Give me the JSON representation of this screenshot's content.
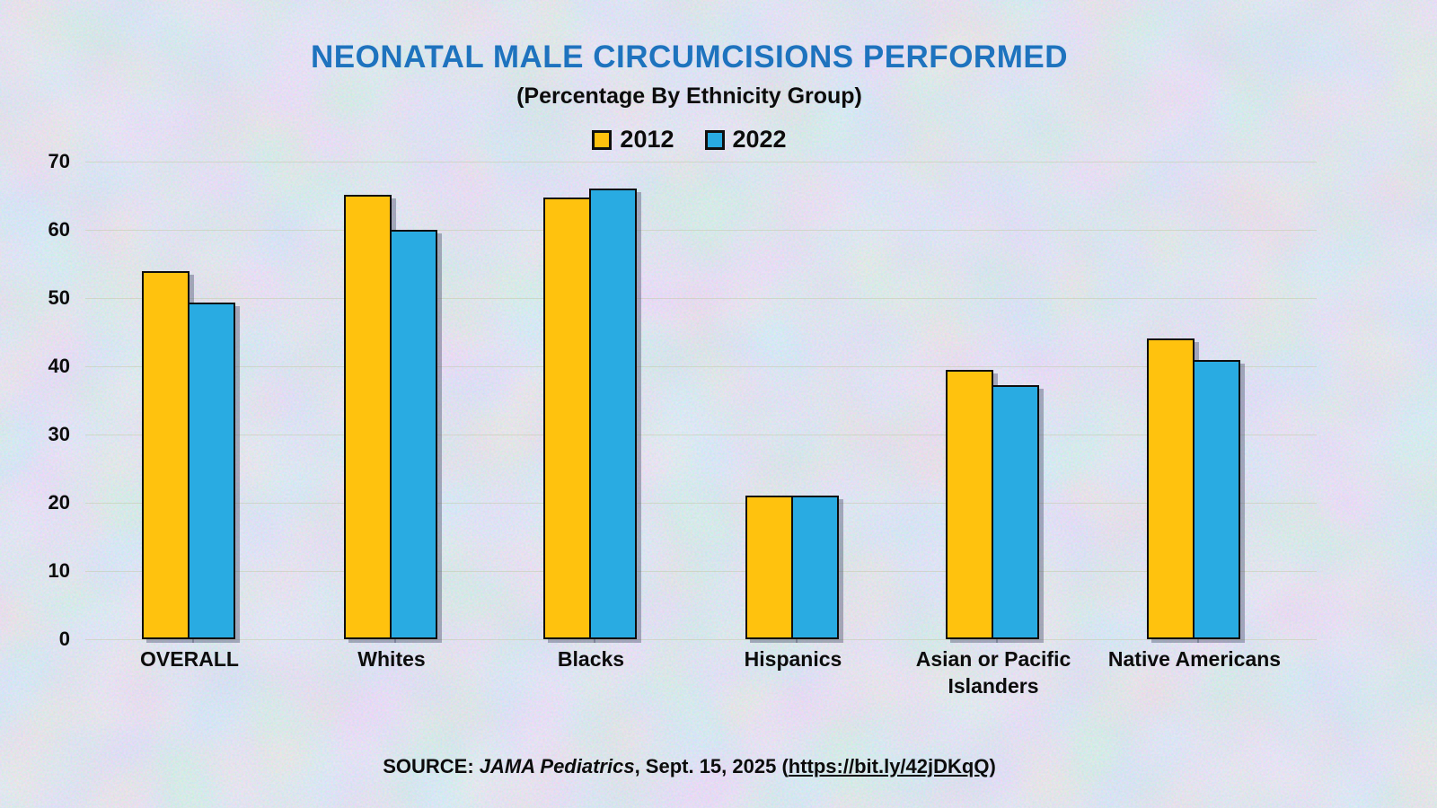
{
  "page": {
    "title": "NEONATAL MALE CIRCUMCISIONS PERFORMED",
    "subtitle": "(Percentage By Ethnicity Group)",
    "title_color": "#1E73BE",
    "background_color": "#CDD7EE"
  },
  "legend": [
    {
      "label": "2012",
      "color": "#FFC20E"
    },
    {
      "label": "2022",
      "color": "#29ABE2"
    }
  ],
  "source": {
    "prefix": "SOURCE: ",
    "journal": "JAMA Pediatrics",
    "middle": ", Sept. 15, 2025 (",
    "link": "https://bit.ly/42jDKqQ",
    "suffix": ")"
  },
  "chart_data": {
    "type": "bar",
    "title": "NEONATAL MALE CIRCUMCISIONS PERFORMED",
    "subtitle": "(Percentage By Ethnicity Group)",
    "categories": [
      "OVERALL",
      "Whites",
      "Blacks",
      "Hispanics",
      "Asian or Pacific Islanders",
      "Native Americans"
    ],
    "series": [
      {
        "name": "2012",
        "color": "#FFC20E",
        "values": [
          54.0,
          65.1,
          64.7,
          21.1,
          39.5,
          44.1
        ]
      },
      {
        "name": "2022",
        "color": "#29ABE2",
        "values": [
          49.3,
          60.0,
          66.0,
          21.1,
          37.2,
          40.9
        ]
      }
    ],
    "xlabel": "",
    "ylabel": "",
    "ylim": [
      0,
      70
    ],
    "yticks": [
      0,
      10,
      20,
      30,
      40,
      50,
      60,
      70
    ],
    "grid": "faint horizontal gridlines",
    "legend_position": "top center",
    "bar_outline": "#0E0E0E"
  }
}
